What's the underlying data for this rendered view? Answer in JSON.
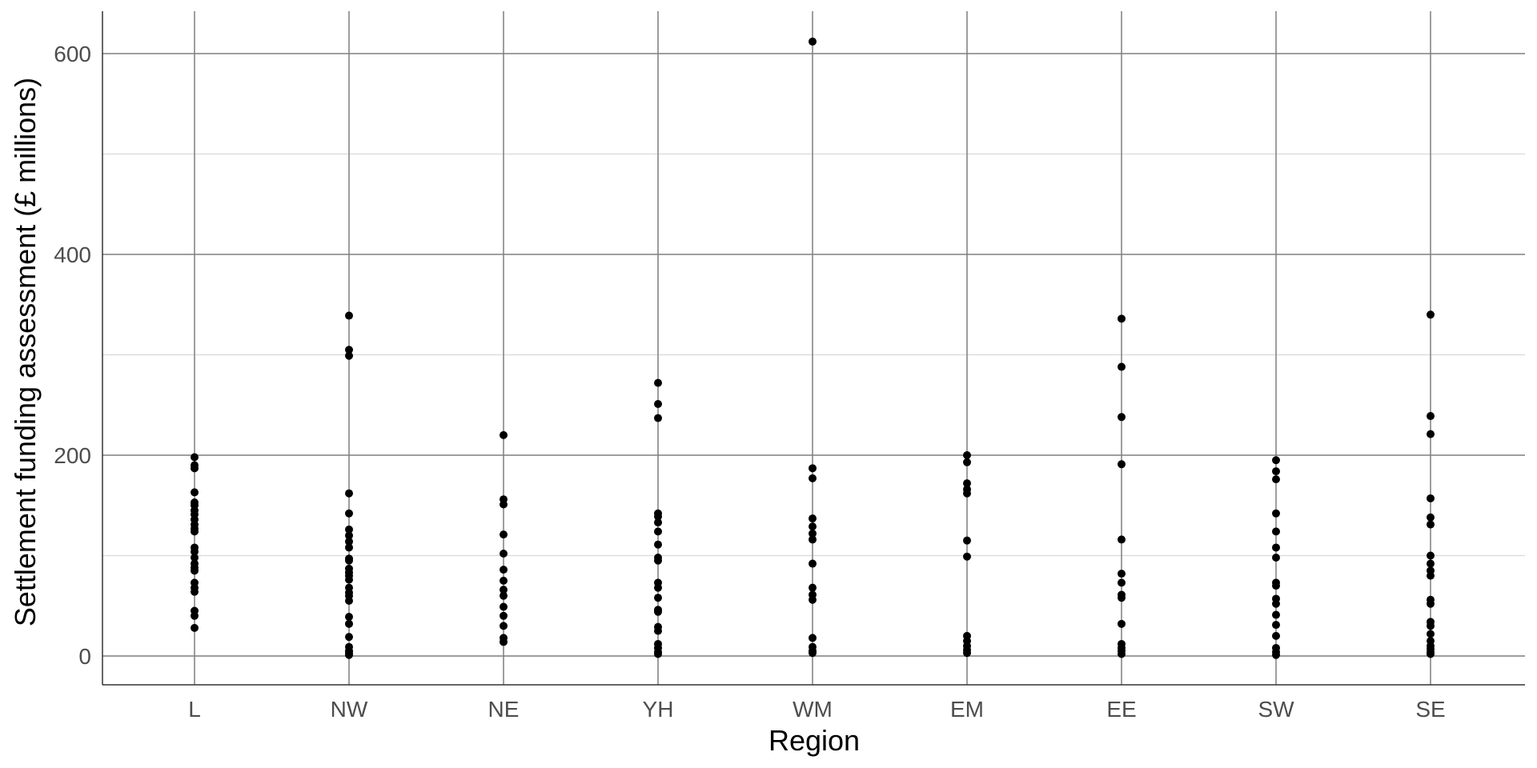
{
  "chart_data": {
    "type": "scatter",
    "xlabel": "Region",
    "ylabel": "Settlement funding assessment (£ millions)",
    "categories": [
      "L",
      "NW",
      "NE",
      "YH",
      "WM",
      "EM",
      "EE",
      "SW",
      "SE"
    ],
    "ylim": [
      -28,
      642
    ],
    "yticks": [
      0,
      200,
      400,
      600
    ],
    "grid": true,
    "point_color": "#000000",
    "series": [
      {
        "values": {
          "L": [
            198,
            190,
            187,
            163,
            153,
            150,
            145,
            141,
            136,
            131,
            127,
            124,
            108,
            104,
            98,
            92,
            88,
            85,
            73,
            68,
            64,
            45,
            40,
            28
          ],
          "NW": [
            339,
            305,
            299,
            162,
            142,
            126,
            120,
            114,
            108,
            97,
            95,
            87,
            83,
            80,
            76,
            68,
            63,
            60,
            55,
            39,
            32,
            19,
            9,
            5,
            3,
            1
          ],
          "NE": [
            220,
            156,
            151,
            121,
            102,
            86,
            75,
            66,
            60,
            49,
            40,
            30,
            18,
            14
          ],
          "YH": [
            272,
            251,
            237,
            142,
            139,
            133,
            124,
            111,
            98,
            95,
            73,
            68,
            58,
            46,
            44,
            29,
            25,
            12,
            8,
            4,
            2
          ],
          "WM": [
            612,
            187,
            177,
            137,
            129,
            122,
            116,
            92,
            68,
            61,
            56,
            18,
            9,
            5,
            3
          ],
          "EM": [
            200,
            193,
            172,
            166,
            162,
            115,
            99,
            20,
            15,
            10,
            6,
            3
          ],
          "EE": [
            336,
            288,
            238,
            191,
            116,
            82,
            73,
            61,
            58,
            32,
            12,
            8,
            5,
            2
          ],
          "SW": [
            195,
            184,
            176,
            142,
            124,
            108,
            98,
            73,
            70,
            57,
            52,
            41,
            31,
            20,
            8,
            4,
            1
          ],
          "SE": [
            340,
            239,
            221,
            157,
            138,
            131,
            100,
            92,
            85,
            80,
            56,
            52,
            34,
            30,
            22,
            15,
            10,
            7,
            4,
            2
          ]
        }
      }
    ]
  }
}
